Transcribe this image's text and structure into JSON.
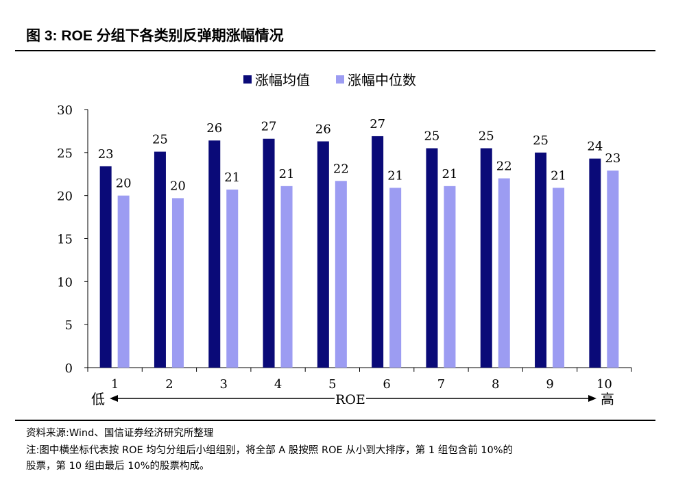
{
  "title": "图 3:  ROE 分组下各类别反弹期涨幅情况",
  "chart_data": {
    "type": "bar",
    "title": "ROE 分组下各类别反弹期涨幅情况",
    "categories": [
      "1",
      "2",
      "3",
      "4",
      "5",
      "6",
      "7",
      "8",
      "9",
      "10"
    ],
    "series": [
      {
        "name": "涨幅均值",
        "color": "#0a0a78",
        "values": [
          23.4,
          25.1,
          26.4,
          26.6,
          26.3,
          26.9,
          25.5,
          25.5,
          25.0,
          24.3
        ],
        "labels": [
          "23",
          "25",
          "26",
          "27",
          "26",
          "27",
          "25",
          "25",
          "25",
          "24"
        ]
      },
      {
        "name": "涨幅中位数",
        "color": "#9c9cf2",
        "values": [
          20.0,
          19.7,
          20.7,
          21.1,
          21.7,
          20.9,
          21.1,
          22.0,
          20.9,
          22.9
        ],
        "labels": [
          "20",
          "20",
          "21",
          "21",
          "22",
          "21",
          "21",
          "22",
          "21",
          "23"
        ]
      }
    ],
    "yticks": [
      "0",
      "5",
      "10",
      "15",
      "20",
      "25",
      "30"
    ],
    "ylim": [
      0,
      30
    ],
    "xlabel": "ROE",
    "x_low": "低",
    "x_high": "高",
    "legend": "top-center",
    "grid": false
  },
  "footer": {
    "source": "资料来源:Wind、国信证券经济研究所整理",
    "note1": "注:图中横坐标代表按 ROE 均匀分组后小组组别，将全部 A 股按照 ROE 从小到大排序，第 1 组包含前 10%的",
    "note2": "股票，第 10 组由最后 10%的股票构成。"
  }
}
